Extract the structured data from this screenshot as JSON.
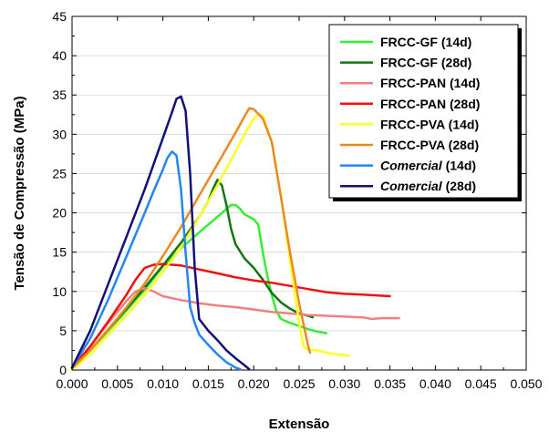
{
  "chart_data": {
    "type": "line",
    "title": "",
    "xlabel": "Extensão",
    "ylabel": "Tensão de Compressão (MPa)",
    "xlim": [
      0.0,
      0.05
    ],
    "ylim": [
      0,
      45
    ],
    "xticks": [
      "0.000",
      "0.005",
      "0.010",
      "0.015",
      "0.020",
      "0.025",
      "0.030",
      "0.035",
      "0.040",
      "0.045",
      "0.050"
    ],
    "yticks": [
      "0",
      "5",
      "10",
      "15",
      "20",
      "25",
      "30",
      "35",
      "40",
      "45"
    ],
    "legend_position": "top-right",
    "series": [
      {
        "name_main": "FRCC-GF",
        "name_suffix": " (14d)",
        "italic": false,
        "color": "#33ee33",
        "points": [
          [
            0,
            0.3
          ],
          [
            0.002,
            2.5
          ],
          [
            0.004,
            5
          ],
          [
            0.006,
            7.6
          ],
          [
            0.008,
            10.2
          ],
          [
            0.01,
            13.2
          ],
          [
            0.012,
            15.5
          ],
          [
            0.014,
            17.5
          ],
          [
            0.016,
            19.5
          ],
          [
            0.0175,
            21
          ],
          [
            0.018,
            21
          ],
          [
            0.0185,
            20.5
          ],
          [
            0.019,
            19.8
          ],
          [
            0.02,
            19.2
          ],
          [
            0.0205,
            18.5
          ],
          [
            0.021,
            15
          ],
          [
            0.0215,
            12
          ],
          [
            0.022,
            9.5
          ],
          [
            0.0225,
            7.5
          ],
          [
            0.023,
            6.5
          ],
          [
            0.024,
            6
          ],
          [
            0.025,
            5.6
          ],
          [
            0.026,
            5.2
          ],
          [
            0.027,
            4.9
          ],
          [
            0.028,
            4.7
          ]
        ]
      },
      {
        "name_main": "FRCC-GF",
        "name_suffix": " (28d)",
        "italic": false,
        "color": "#117711",
        "points": [
          [
            0,
            0.3
          ],
          [
            0.002,
            2.5
          ],
          [
            0.004,
            5.2
          ],
          [
            0.006,
            7.8
          ],
          [
            0.008,
            10.5
          ],
          [
            0.01,
            13.3
          ],
          [
            0.012,
            16.2
          ],
          [
            0.014,
            19.5
          ],
          [
            0.015,
            21.5
          ],
          [
            0.0155,
            23
          ],
          [
            0.016,
            24.2
          ],
          [
            0.0165,
            23.5
          ],
          [
            0.017,
            21
          ],
          [
            0.0175,
            18
          ],
          [
            0.018,
            16
          ],
          [
            0.019,
            14.2
          ],
          [
            0.02,
            13
          ],
          [
            0.021,
            11.5
          ],
          [
            0.022,
            9.8
          ],
          [
            0.023,
            8.6
          ],
          [
            0.024,
            7.8
          ],
          [
            0.025,
            7.2
          ],
          [
            0.026,
            6.9
          ],
          [
            0.0265,
            6.7
          ]
        ]
      },
      {
        "name_main": "FRCC-PAN",
        "name_suffix": " (14d)",
        "italic": false,
        "color": "#f08080",
        "points": [
          [
            0,
            0.3
          ],
          [
            0.002,
            3
          ],
          [
            0.004,
            6
          ],
          [
            0.006,
            8.8
          ],
          [
            0.007,
            10
          ],
          [
            0.008,
            10.4
          ],
          [
            0.009,
            10
          ],
          [
            0.01,
            9.4
          ],
          [
            0.012,
            8.9
          ],
          [
            0.014,
            8.5
          ],
          [
            0.016,
            8.2
          ],
          [
            0.018,
            8
          ],
          [
            0.02,
            7.7
          ],
          [
            0.022,
            7.4
          ],
          [
            0.024,
            7.2
          ],
          [
            0.026,
            7
          ],
          [
            0.028,
            6.9
          ],
          [
            0.03,
            6.8
          ],
          [
            0.032,
            6.7
          ],
          [
            0.033,
            6.5
          ],
          [
            0.034,
            6.6
          ],
          [
            0.036,
            6.6
          ]
        ]
      },
      {
        "name_main": "FRCC-PAN",
        "name_suffix": " (28d)",
        "italic": false,
        "color": "#ee1111",
        "points": [
          [
            0,
            0.3
          ],
          [
            0.002,
            3
          ],
          [
            0.004,
            6.2
          ],
          [
            0.006,
            9.6
          ],
          [
            0.007,
            11.5
          ],
          [
            0.008,
            13
          ],
          [
            0.009,
            13.4
          ],
          [
            0.01,
            13.5
          ],
          [
            0.011,
            13.4
          ],
          [
            0.012,
            13.3
          ],
          [
            0.014,
            12.8
          ],
          [
            0.016,
            12.3
          ],
          [
            0.018,
            11.8
          ],
          [
            0.02,
            11.4
          ],
          [
            0.022,
            11.1
          ],
          [
            0.024,
            10.7
          ],
          [
            0.026,
            10.3
          ],
          [
            0.028,
            9.9
          ],
          [
            0.03,
            9.7
          ],
          [
            0.032,
            9.6
          ],
          [
            0.035,
            9.4
          ]
        ]
      },
      {
        "name_main": "FRCC-PVA",
        "name_suffix": " (14d)",
        "italic": false,
        "color": "#ffff22",
        "points": [
          [
            0,
            0
          ],
          [
            0.002,
            2
          ],
          [
            0.004,
            4.5
          ],
          [
            0.006,
            7
          ],
          [
            0.008,
            9.6
          ],
          [
            0.01,
            12.5
          ],
          [
            0.012,
            15.6
          ],
          [
            0.014,
            19.5
          ],
          [
            0.016,
            23.5
          ],
          [
            0.018,
            27.8
          ],
          [
            0.019,
            30
          ],
          [
            0.02,
            32
          ],
          [
            0.0205,
            32.5
          ],
          [
            0.021,
            32.4
          ],
          [
            0.022,
            29
          ],
          [
            0.023,
            22
          ],
          [
            0.024,
            14
          ],
          [
            0.025,
            6
          ],
          [
            0.0255,
            3
          ],
          [
            0.026,
            2.6
          ],
          [
            0.027,
            2.5
          ],
          [
            0.028,
            2.2
          ],
          [
            0.029,
            2
          ],
          [
            0.03,
            1.9
          ],
          [
            0.0305,
            1.8
          ]
        ]
      },
      {
        "name_main": "FRCC-PVA",
        "name_suffix": " (28d)",
        "italic": false,
        "color": "#ee8822",
        "points": [
          [
            0,
            0.2
          ],
          [
            0.002,
            2.5
          ],
          [
            0.004,
            5.2
          ],
          [
            0.006,
            8
          ],
          [
            0.008,
            11
          ],
          [
            0.01,
            14.5
          ],
          [
            0.012,
            18.2
          ],
          [
            0.014,
            22.2
          ],
          [
            0.016,
            26.2
          ],
          [
            0.018,
            30.2
          ],
          [
            0.019,
            32.3
          ],
          [
            0.0195,
            33.3
          ],
          [
            0.02,
            33.2
          ],
          [
            0.021,
            32
          ],
          [
            0.022,
            29
          ],
          [
            0.023,
            22
          ],
          [
            0.024,
            15
          ],
          [
            0.025,
            8.5
          ],
          [
            0.026,
            3
          ],
          [
            0.0262,
            2.2
          ]
        ]
      },
      {
        "name_main": "Comercial",
        "name_suffix": " (14d)",
        "italic": true,
        "color": "#2288ee",
        "points": [
          [
            0,
            0.3
          ],
          [
            0.002,
            4
          ],
          [
            0.004,
            9
          ],
          [
            0.006,
            14.5
          ],
          [
            0.008,
            20
          ],
          [
            0.009,
            22.8
          ],
          [
            0.01,
            25.5
          ],
          [
            0.0105,
            27
          ],
          [
            0.011,
            27.8
          ],
          [
            0.0115,
            27.3
          ],
          [
            0.012,
            23
          ],
          [
            0.0125,
            15
          ],
          [
            0.013,
            8
          ],
          [
            0.0135,
            6
          ],
          [
            0.014,
            4.5
          ],
          [
            0.015,
            3.2
          ],
          [
            0.016,
            2
          ],
          [
            0.017,
            1
          ],
          [
            0.018,
            0.3
          ],
          [
            0.0185,
            0.1
          ]
        ]
      },
      {
        "name_main": "Comercial",
        "name_suffix": " (28d)",
        "italic": true,
        "color": "#111177",
        "points": [
          [
            0,
            0.3
          ],
          [
            0.002,
            5
          ],
          [
            0.004,
            11
          ],
          [
            0.006,
            17
          ],
          [
            0.008,
            23
          ],
          [
            0.01,
            29.5
          ],
          [
            0.011,
            32.8
          ],
          [
            0.0115,
            34.5
          ],
          [
            0.012,
            34.8
          ],
          [
            0.0125,
            33
          ],
          [
            0.013,
            25
          ],
          [
            0.0135,
            13
          ],
          [
            0.014,
            6.5
          ],
          [
            0.015,
            5
          ],
          [
            0.016,
            3.8
          ],
          [
            0.017,
            2.5
          ],
          [
            0.018,
            1.5
          ],
          [
            0.019,
            0.6
          ],
          [
            0.0195,
            0.1
          ]
        ]
      }
    ]
  }
}
